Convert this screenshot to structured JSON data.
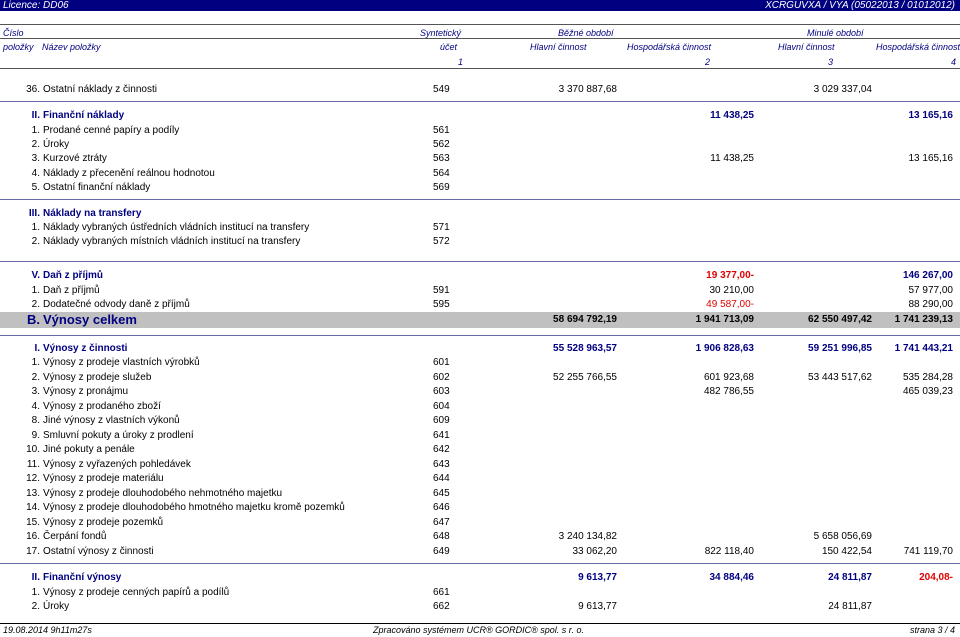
{
  "topbar": {
    "license": "Licence: DD06",
    "code": "XCRGUVXA / VYA (05022013 / 01012012)"
  },
  "header": {
    "cislo": "Číslo",
    "polozky": "položky",
    "nazev": "Název položky",
    "synteticky": "Syntetický",
    "ucet": "účet",
    "bezne": "Běžné období",
    "minule": "Minulé období",
    "hlavni": "Hlavní činnost",
    "hosp": "Hospodářská činnost",
    "c1": "1",
    "c2": "2",
    "c3": "3",
    "c4": "4"
  },
  "rows": [
    {
      "kind": "item",
      "num": "36.",
      "name": "Ostatní náklady z činnosti",
      "acct": "549",
      "b1": "3 370 887,68",
      "b2": "",
      "m1": "3 029 337,04",
      "m2": ""
    },
    {
      "kind": "sep"
    },
    {
      "kind": "sec",
      "num": "II.",
      "name": "Finanční náklady",
      "acct": "",
      "b1": "",
      "b2": "11 438,25",
      "m1": "",
      "m2": "13 165,16"
    },
    {
      "kind": "item",
      "num": "1.",
      "name": "Prodané cenné papíry a podíly",
      "acct": "561",
      "b1": "",
      "b2": "",
      "m1": "",
      "m2": ""
    },
    {
      "kind": "item",
      "num": "2.",
      "name": "Úroky",
      "acct": "562",
      "b1": "",
      "b2": "",
      "m1": "",
      "m2": ""
    },
    {
      "kind": "item",
      "num": "3.",
      "name": "Kurzové ztráty",
      "acct": "563",
      "b1": "",
      "b2": "11 438,25",
      "m1": "",
      "m2": "13 165,16"
    },
    {
      "kind": "item",
      "num": "4.",
      "name": "Náklady z přecenění reálnou hodnotou",
      "acct": "564",
      "b1": "",
      "b2": "",
      "m1": "",
      "m2": ""
    },
    {
      "kind": "item",
      "num": "5.",
      "name": "Ostatní finanční náklady",
      "acct": "569",
      "b1": "",
      "b2": "",
      "m1": "",
      "m2": ""
    },
    {
      "kind": "sep"
    },
    {
      "kind": "sec",
      "num": "III.",
      "name": "Náklady na transfery",
      "acct": "",
      "b1": "",
      "b2": "",
      "m1": "",
      "m2": ""
    },
    {
      "kind": "item",
      "num": "1.",
      "name": "Náklady vybraných ústředních vládních institucí na transfery",
      "acct": "571",
      "b1": "",
      "b2": "",
      "m1": "",
      "m2": ""
    },
    {
      "kind": "item",
      "num": "2.",
      "name": "Náklady vybraných místních vládních institucí na transfery",
      "acct": "572",
      "b1": "",
      "b2": "",
      "m1": "",
      "m2": ""
    },
    {
      "kind": "sep"
    },
    {
      "kind": "sec",
      "num": "V.",
      "name": "Daň z příjmů",
      "acct": "",
      "b1": "",
      "b2": "19 377,00-",
      "b2red": true,
      "m1": "",
      "m2": "146 267,00"
    },
    {
      "kind": "item",
      "num": "1.",
      "name": "Daň z příjmů",
      "acct": "591",
      "b1": "",
      "b2": "30 210,00",
      "m1": "",
      "m2": "57 977,00"
    },
    {
      "kind": "item",
      "num": "2.",
      "name": "Dodatečné odvody daně z příjmů",
      "acct": "595",
      "b1": "",
      "b2": "49 587,00-",
      "b2red": true,
      "m1": "",
      "m2": "88 290,00"
    },
    {
      "kind": "big",
      "num": "B.",
      "name": "Výnosy celkem",
      "acct": "",
      "b1": "58 694 792,19",
      "b2": "1 941 713,09",
      "m1": "62 550 497,42",
      "m2": "1 741 239,13"
    },
    {
      "kind": "sep"
    },
    {
      "kind": "sec",
      "num": "I.",
      "name": "Výnosy z činnosti",
      "acct": "",
      "b1": "55 528 963,57",
      "b2": "1 906 828,63",
      "m1": "59 251 996,85",
      "m2": "1 741 443,21"
    },
    {
      "kind": "item",
      "num": "1.",
      "name": "Výnosy z prodeje vlastních výrobků",
      "acct": "601",
      "b1": "",
      "b2": "",
      "m1": "",
      "m2": ""
    },
    {
      "kind": "item",
      "num": "2.",
      "name": "Výnosy z prodeje služeb",
      "acct": "602",
      "b1": "52 255 766,55",
      "b2": "601 923,68",
      "m1": "53 443 517,62",
      "m2": "535 284,28"
    },
    {
      "kind": "item",
      "num": "3.",
      "name": "Výnosy z pronájmu",
      "acct": "603",
      "b1": "",
      "b2": "482 786,55",
      "m1": "",
      "m2": "465 039,23"
    },
    {
      "kind": "item",
      "num": "4.",
      "name": "Výnosy z prodaného zboží",
      "acct": "604",
      "b1": "",
      "b2": "",
      "m1": "",
      "m2": ""
    },
    {
      "kind": "item",
      "num": "8.",
      "name": "Jiné výnosy z vlastních výkonů",
      "acct": "609",
      "b1": "",
      "b2": "",
      "m1": "",
      "m2": ""
    },
    {
      "kind": "item",
      "num": "9.",
      "name": "Smluvní pokuty a úroky z prodlení",
      "acct": "641",
      "b1": "",
      "b2": "",
      "m1": "",
      "m2": ""
    },
    {
      "kind": "item",
      "num": "10.",
      "name": "Jiné pokuty a penále",
      "acct": "642",
      "b1": "",
      "b2": "",
      "m1": "",
      "m2": ""
    },
    {
      "kind": "item",
      "num": "11.",
      "name": "Výnosy z vyřazených pohledávek",
      "acct": "643",
      "b1": "",
      "b2": "",
      "m1": "",
      "m2": ""
    },
    {
      "kind": "item",
      "num": "12.",
      "name": "Výnosy z prodeje materiálu",
      "acct": "644",
      "b1": "",
      "b2": "",
      "m1": "",
      "m2": ""
    },
    {
      "kind": "item",
      "num": "13.",
      "name": "Výnosy z prodeje dlouhodobého nehmotného majetku",
      "acct": "645",
      "b1": "",
      "b2": "",
      "m1": "",
      "m2": ""
    },
    {
      "kind": "item",
      "num": "14.",
      "name": "Výnosy z prodeje dlouhodobého hmotného majetku kromě pozemků",
      "acct": "646",
      "b1": "",
      "b2": "",
      "m1": "",
      "m2": ""
    },
    {
      "kind": "item",
      "num": "15.",
      "name": "Výnosy z prodeje pozemků",
      "acct": "647",
      "b1": "",
      "b2": "",
      "m1": "",
      "m2": ""
    },
    {
      "kind": "item",
      "num": "16.",
      "name": "Čerpání fondů",
      "acct": "648",
      "b1": "3 240 134,82",
      "b2": "",
      "m1": "5 658 056,69",
      "m2": ""
    },
    {
      "kind": "item",
      "num": "17.",
      "name": "Ostatní výnosy z činnosti",
      "acct": "649",
      "b1": "33 062,20",
      "b2": "822 118,40",
      "m1": "150 422,54",
      "m2": "741 119,70"
    },
    {
      "kind": "sep"
    },
    {
      "kind": "sec",
      "num": "II.",
      "name": "Finanční výnosy",
      "acct": "",
      "b1": "9 613,77",
      "b2": "34 884,46",
      "m1": "24 811,87",
      "m2": "204,08-",
      "m2red": true
    },
    {
      "kind": "item",
      "num": "1.",
      "name": "Výnosy z prodeje cenných papírů a podílů",
      "acct": "661",
      "b1": "",
      "b2": "",
      "m1": "",
      "m2": ""
    },
    {
      "kind": "item",
      "num": "2.",
      "name": "Úroky",
      "acct": "662",
      "b1": "9 613,77",
      "b2": "",
      "m1": "24 811,87",
      "m2": ""
    }
  ],
  "footer": {
    "date": "19.08.2014 9h11m27s",
    "system": "Zpracováno systémem UCR® GORDIC® spol. s r. o.",
    "page": "strana 3 / 4"
  }
}
